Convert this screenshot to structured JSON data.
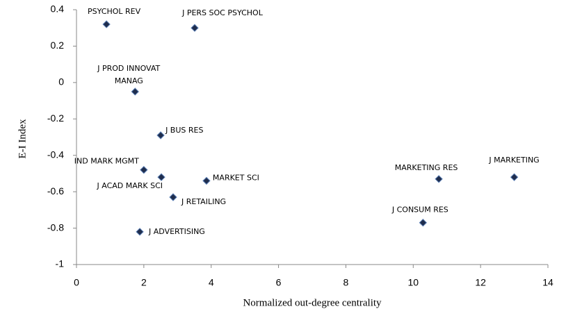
{
  "chart_data": {
    "type": "scatter",
    "x_label": "Normalized out-degree centrality",
    "y_label": "E-I Index",
    "labels": [
      "PSYCHOL REV",
      "J PERS SOC PSYCHOL",
      "J PROD INNOVAT\nMANAG",
      "J BUS RES",
      "IND MARK MGMT",
      "J ACAD MARK SCI",
      "MARKET SCI",
      "J RETAILING",
      "J ADVERTISING",
      "MARKETING RES",
      "J MARKETING",
      "J CONSUM RES"
    ],
    "x": [
      0.89,
      3.51,
      1.74,
      2.5,
      2.0,
      2.52,
      3.86,
      2.87,
      1.88,
      10.76,
      13.0,
      10.29
    ],
    "values": [
      0.32,
      0.3,
      -0.05,
      -0.29,
      -0.48,
      -0.52,
      -0.54,
      -0.63,
      -0.82,
      -0.53,
      -0.52,
      -0.77
    ],
    "color": "#1f2d4d",
    "xlim": [
      0,
      14
    ],
    "xticks": [
      0,
      2,
      4,
      6,
      8,
      10,
      12,
      14
    ],
    "ylim": [
      -1,
      0.4
    ],
    "yticks": [
      -1,
      -0.8,
      -0.6,
      -0.4,
      -0.2,
      0,
      0.2,
      0.4
    ],
    "grid": false
  }
}
